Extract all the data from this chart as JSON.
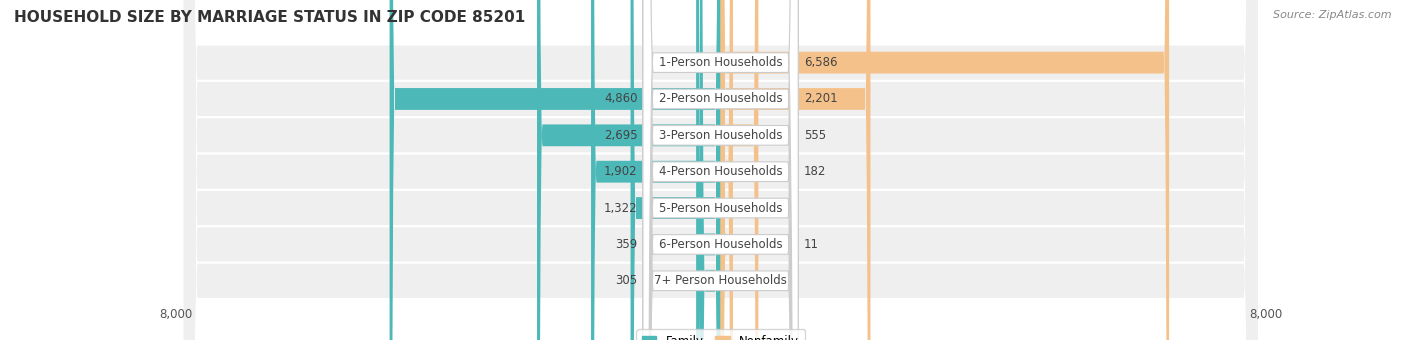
{
  "title": "HOUSEHOLD SIZE BY MARRIAGE STATUS IN ZIP CODE 85201",
  "source": "Source: ZipAtlas.com",
  "categories": [
    "7+ Person Households",
    "6-Person Households",
    "5-Person Households",
    "4-Person Households",
    "3-Person Households",
    "2-Person Households",
    "1-Person Households"
  ],
  "family_values": [
    305,
    359,
    1322,
    1902,
    2695,
    4860,
    0
  ],
  "nonfamily_values": [
    0,
    11,
    0,
    182,
    555,
    2201,
    6586
  ],
  "family_color": "#4db8b8",
  "nonfamily_color": "#f5c18a",
  "axis_max": 8000,
  "row_bg_color": "#efefef",
  "label_font_size": 8.5,
  "title_font_size": 11
}
